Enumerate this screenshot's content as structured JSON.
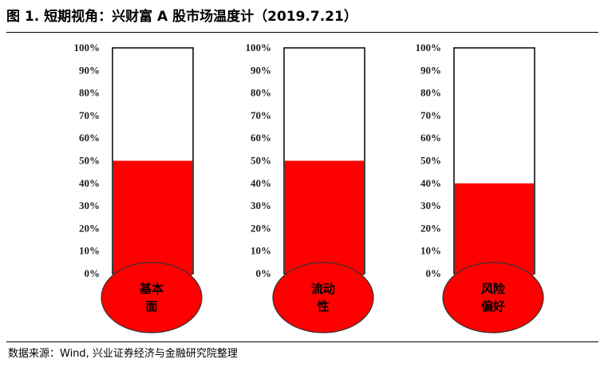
{
  "header": {
    "title": "图 1. 短期视角：兴财富 A 股市场温度计（2019.7.21）"
  },
  "footer": {
    "source": "数据来源：Wind, 兴业证券经济与金融研究院整理"
  },
  "chart_data": {
    "type": "bar",
    "subtype": "thermometer",
    "ylim": [
      0,
      100
    ],
    "tick_labels": [
      "100%",
      "90%",
      "80%",
      "70%",
      "60%",
      "50%",
      "40%",
      "30%",
      "20%",
      "10%",
      "0%"
    ],
    "categories": [
      {
        "line1": "基本",
        "line2": "面"
      },
      {
        "line1": "流动",
        "line2": "性"
      },
      {
        "line1": "风险",
        "line2": "偏好"
      }
    ],
    "values": [
      50,
      50,
      40
    ],
    "colors": {
      "fill": "#ff0000",
      "tube_border": "#000000",
      "bulb_border": "#333333"
    }
  }
}
